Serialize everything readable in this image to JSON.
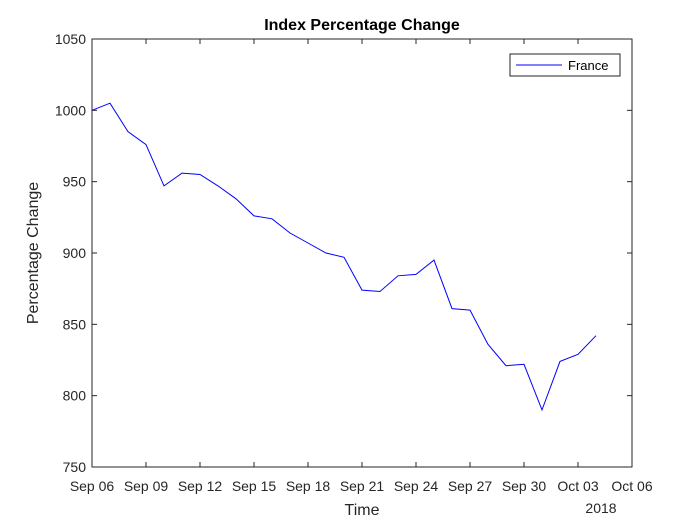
{
  "chart_data": {
    "type": "line",
    "title": "Index Percentage Change",
    "xlabel": "Time",
    "ylabel": "Percentage Change",
    "x_secondary_label": "2018",
    "ylim": [
      750,
      1050
    ],
    "yticks": [
      750,
      800,
      850,
      900,
      950,
      1000,
      1050
    ],
    "xticks": [
      "Sep 06",
      "Sep 09",
      "Sep 12",
      "Sep 15",
      "Sep 18",
      "Sep 21",
      "Sep 24",
      "Sep 27",
      "Sep 30",
      "Oct 03",
      "Oct 06"
    ],
    "grid": false,
    "legend_position": "top-right",
    "series": [
      {
        "name": "France",
        "color": "#0000ff",
        "x": [
          "Sep 06",
          "Sep 07",
          "Sep 08",
          "Sep 09",
          "Sep 10",
          "Sep 11",
          "Sep 12",
          "Sep 13",
          "Sep 14",
          "Sep 15",
          "Sep 16",
          "Sep 17",
          "Sep 18",
          "Sep 19",
          "Sep 20",
          "Sep 21",
          "Sep 22",
          "Sep 23",
          "Sep 24",
          "Sep 25",
          "Sep 26",
          "Sep 27",
          "Sep 28",
          "Sep 29",
          "Sep 30",
          "Oct 01",
          "Oct 02",
          "Oct 03",
          "Oct 04"
        ],
        "values": [
          1000,
          1005,
          985,
          976,
          947,
          956,
          955,
          947,
          938,
          926,
          924,
          914,
          907,
          900,
          897,
          874,
          873,
          884,
          885,
          895,
          861,
          860,
          836,
          821,
          822,
          790,
          824,
          829,
          842
        ]
      }
    ]
  }
}
